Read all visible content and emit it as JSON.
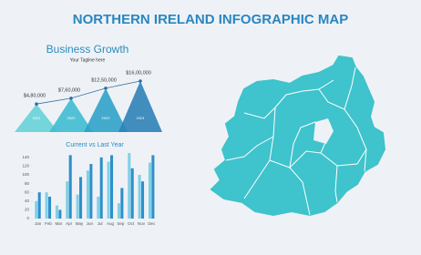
{
  "title": "NORTHERN IRELAND INFOGRAPHIC MAP",
  "chart_data": [
    {
      "type": "triangle",
      "title": "Business Growth",
      "subtitle": "Your Tagline here",
      "categories": [
        "2021",
        "2022",
        "2023",
        "2024"
      ],
      "values": [
        480000,
        760000,
        1250000,
        1600000
      ],
      "value_labels": [
        "$4,80,000",
        "$7,60,000",
        "$12,50,000",
        "$16,00,000"
      ],
      "colors": [
        "#66d2d8",
        "#3fbcd2",
        "#2fa2c9",
        "#2c82b8"
      ]
    },
    {
      "type": "bar",
      "title": "Current vs Last Year",
      "categories": [
        "Jan",
        "Feb",
        "Mar",
        "Apr",
        "May",
        "Jun",
        "Jul",
        "Aug",
        "Sep",
        "Oct",
        "Nov",
        "Dec"
      ],
      "series": [
        {
          "color": "#7fd0e6",
          "values": [
            40,
            60,
            30,
            85,
            55,
            110,
            50,
            130,
            35,
            150,
            100,
            128
          ]
        },
        {
          "color": "#2e8fca",
          "values": [
            60,
            50,
            20,
            145,
            95,
            125,
            140,
            145,
            70,
            115,
            85,
            145
          ]
        }
      ],
      "ylim": [
        0,
        150
      ],
      "yticks": [
        0,
        20,
        40,
        60,
        80,
        100,
        120,
        140
      ]
    }
  ]
}
